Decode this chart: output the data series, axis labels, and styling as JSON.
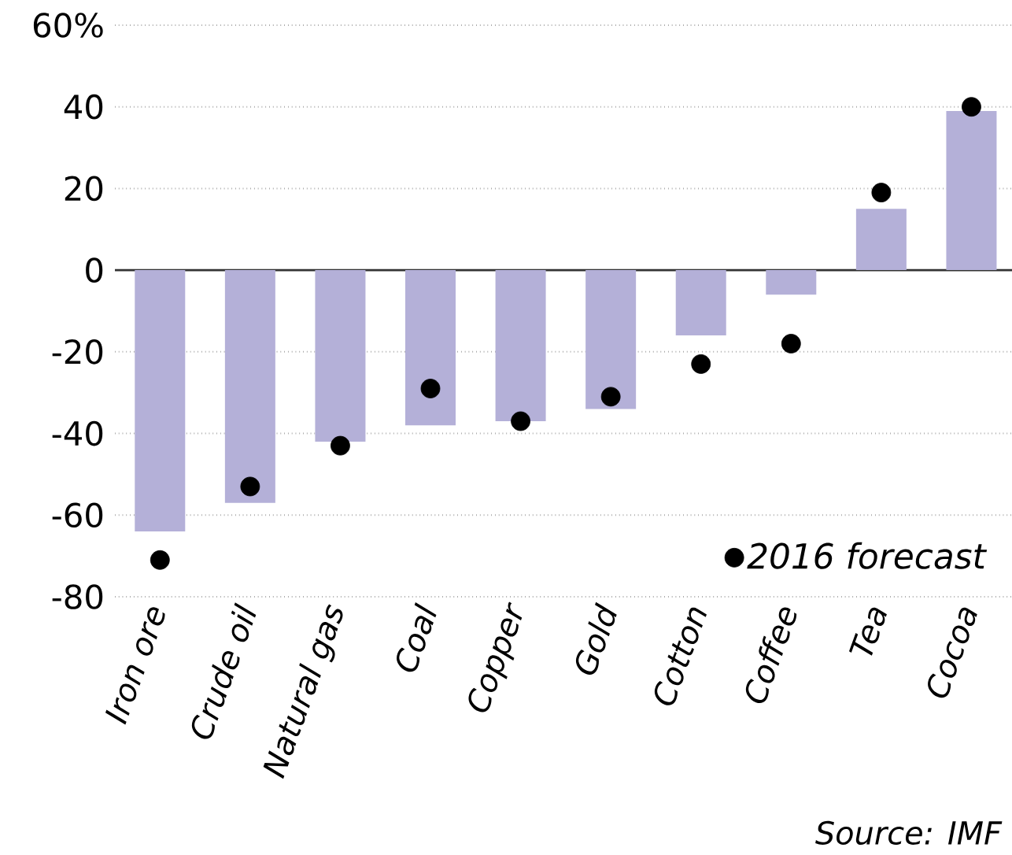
{
  "chart_data": {
    "type": "bar",
    "categories": [
      "Iron ore",
      "Crude oil",
      "Natural gas",
      "Coal",
      "Copper",
      "Gold",
      "Cotton",
      "Coffee",
      "Tea",
      "Cocoa"
    ],
    "series": [
      {
        "color": "#b4b0d8",
        "values": [
          -64,
          -57,
          -42,
          -38,
          -37,
          -34,
          -16,
          -6,
          15,
          39
        ]
      },
      {
        "type": "scatter",
        "name": "2016 forecast",
        "color": "#000000",
        "values": [
          -71,
          -53,
          -43,
          -29,
          -37,
          -31,
          -23,
          -18,
          19,
          40
        ]
      }
    ],
    "ylim": [
      -80,
      60
    ],
    "yticks": [
      {
        "value": 60,
        "label": "60%"
      },
      40,
      20,
      0,
      -20,
      -40,
      -60,
      -80
    ],
    "grid": "y",
    "legend": "bottom right",
    "marker": "circle",
    "ref_lines": [
      {
        "axis": "y",
        "value": 0,
        "color": "#333333",
        "line_style": "solid"
      }
    ],
    "annotations": [
      "Source: IMF"
    ]
  }
}
